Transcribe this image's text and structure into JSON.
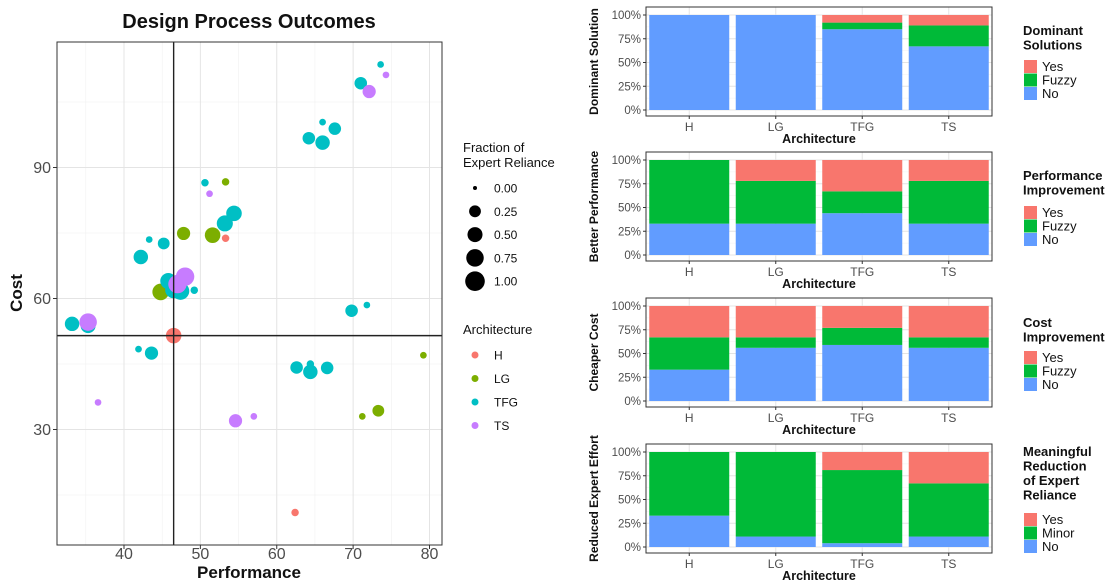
{
  "colors": {
    "H": "#F8766D",
    "LG": "#7CAE00",
    "TFG": "#00BFC4",
    "TS": "#C77CFF",
    "Yes": "#F8766D",
    "Fuzzy": "#00BA38",
    "Minor": "#00BA38",
    "No": "#619CFF"
  },
  "chart_data": [
    {
      "type": "scatter",
      "title": "Design Process Outcomes",
      "xlabel": "Performance",
      "ylabel": "Cost",
      "xlim": [
        32,
        81
      ],
      "ylim": [
        3,
        120
      ],
      "xticks": [
        40,
        50,
        60,
        70,
        80
      ],
      "yticks": [
        30,
        60,
        90
      ],
      "grid": true,
      "reference_lines": {
        "x": 46.5,
        "y": 51.5
      },
      "size_legend": {
        "title": "Fraction of Expert Reliance",
        "values": [
          "0.00",
          "0.25",
          "0.50",
          "0.75",
          "1.00"
        ]
      },
      "color_legend": {
        "title": "Architecture",
        "items": [
          "H",
          "LG",
          "TFG",
          "TS"
        ]
      },
      "series": [
        {
          "name": "H",
          "points": [
            {
              "x": 46.5,
              "y": 51.5,
              "s": 0.55
            },
            {
              "x": 53.3,
              "y": 73.8,
              "s": 0.05
            },
            {
              "x": 62.4,
              "y": 11.0,
              "s": 0.05
            }
          ]
        },
        {
          "name": "LG",
          "points": [
            {
              "x": 44.8,
              "y": 61.5,
              "s": 0.65
            },
            {
              "x": 51.6,
              "y": 74.5,
              "s": 0.55
            },
            {
              "x": 47.8,
              "y": 74.9,
              "s": 0.35
            },
            {
              "x": 53.3,
              "y": 86.7,
              "s": 0.05
            },
            {
              "x": 73.3,
              "y": 34.3,
              "s": 0.25
            },
            {
              "x": 71.2,
              "y": 33.0,
              "s": 0.03
            },
            {
              "x": 79.2,
              "y": 47.0,
              "s": 0.03
            }
          ]
        },
        {
          "name": "TFG",
          "points": [
            {
              "x": 33.2,
              "y": 54.2,
              "s": 0.45
            },
            {
              "x": 35.3,
              "y": 53.8,
              "s": 0.5
            },
            {
              "x": 42.2,
              "y": 69.5,
              "s": 0.45
            },
            {
              "x": 43.3,
              "y": 73.5,
              "s": 0.03
            },
            {
              "x": 45.2,
              "y": 72.6,
              "s": 0.25
            },
            {
              "x": 45.8,
              "y": 64.0,
              "s": 0.6
            },
            {
              "x": 46.5,
              "y": 62.0,
              "s": 0.7
            },
            {
              "x": 47.4,
              "y": 61.7,
              "s": 0.75
            },
            {
              "x": 49.2,
              "y": 61.9,
              "s": 0.05
            },
            {
              "x": 50.6,
              "y": 86.5,
              "s": 0.05
            },
            {
              "x": 53.2,
              "y": 77.2,
              "s": 0.6
            },
            {
              "x": 54.4,
              "y": 79.5,
              "s": 0.55
            },
            {
              "x": 41.9,
              "y": 48.4,
              "s": 0.03
            },
            {
              "x": 43.6,
              "y": 47.5,
              "s": 0.35
            },
            {
              "x": 62.6,
              "y": 44.2,
              "s": 0.3
            },
            {
              "x": 64.4,
              "y": 43.2,
              "s": 0.45
            },
            {
              "x": 64.4,
              "y": 45.0,
              "s": 0.05
            },
            {
              "x": 66.6,
              "y": 44.1,
              "s": 0.3
            },
            {
              "x": 64.2,
              "y": 96.7,
              "s": 0.3
            },
            {
              "x": 66.0,
              "y": 95.7,
              "s": 0.45
            },
            {
              "x": 66.0,
              "y": 100.4,
              "s": 0.03
            },
            {
              "x": 67.6,
              "y": 98.9,
              "s": 0.3
            },
            {
              "x": 69.8,
              "y": 57.2,
              "s": 0.3
            },
            {
              "x": 71.8,
              "y": 58.5,
              "s": 0.03
            },
            {
              "x": 71.0,
              "y": 109.3,
              "s": 0.3
            },
            {
              "x": 73.6,
              "y": 113.6,
              "s": 0.03
            }
          ]
        },
        {
          "name": "TS",
          "points": [
            {
              "x": 35.3,
              "y": 54.6,
              "s": 0.75
            },
            {
              "x": 48.0,
              "y": 65.0,
              "s": 0.85
            },
            {
              "x": 47.0,
              "y": 63.3,
              "s": 0.85
            },
            {
              "x": 51.2,
              "y": 84.0,
              "s": 0.03
            },
            {
              "x": 54.6,
              "y": 32.0,
              "s": 0.35
            },
            {
              "x": 57.0,
              "y": 33.0,
              "s": 0.03
            },
            {
              "x": 36.6,
              "y": 36.2,
              "s": 0.03
            },
            {
              "x": 72.1,
              "y": 107.4,
              "s": 0.35
            },
            {
              "x": 74.3,
              "y": 111.2,
              "s": 0.03
            }
          ]
        }
      ]
    },
    {
      "type": "bar",
      "stacked": true,
      "ylabel": "Dominant Solution",
      "xlabel": "Architecture",
      "categories": [
        "H",
        "LG",
        "TFG",
        "TS"
      ],
      "yticks": [
        "0%",
        "25%",
        "50%",
        "75%",
        "100%"
      ],
      "legend": {
        "title": "Dominant Solutions",
        "items": [
          "Yes",
          "Fuzzy",
          "No"
        ]
      },
      "series": [
        {
          "name": "No",
          "values": [
            100,
            100,
            85,
            67
          ]
        },
        {
          "name": "Fuzzy",
          "values": [
            0,
            0,
            7,
            22
          ]
        },
        {
          "name": "Yes",
          "values": [
            0,
            0,
            8,
            11
          ]
        }
      ]
    },
    {
      "type": "bar",
      "stacked": true,
      "ylabel": "Better Performance",
      "xlabel": "Architecture",
      "categories": [
        "H",
        "LG",
        "TFG",
        "TS"
      ],
      "yticks": [
        "0%",
        "25%",
        "50%",
        "75%",
        "100%"
      ],
      "legend": {
        "title": "Performance Improvement",
        "items": [
          "Yes",
          "Fuzzy",
          "No"
        ]
      },
      "series": [
        {
          "name": "No",
          "values": [
            33,
            33,
            44,
            33
          ]
        },
        {
          "name": "Fuzzy",
          "values": [
            67,
            45,
            23,
            45
          ]
        },
        {
          "name": "Yes",
          "values": [
            0,
            22,
            33,
            22
          ]
        }
      ]
    },
    {
      "type": "bar",
      "stacked": true,
      "ylabel": "Cheaper Cost",
      "xlabel": "Architecture",
      "categories": [
        "H",
        "LG",
        "TFG",
        "TS"
      ],
      "yticks": [
        "0%",
        "25%",
        "50%",
        "75%",
        "100%"
      ],
      "legend": {
        "title": "Cost Improvement",
        "items": [
          "Yes",
          "Fuzzy",
          "No"
        ]
      },
      "series": [
        {
          "name": "No",
          "values": [
            33,
            56,
            59,
            56
          ]
        },
        {
          "name": "Fuzzy",
          "values": [
            34,
            11,
            18,
            11
          ]
        },
        {
          "name": "Yes",
          "values": [
            33,
            33,
            23,
            33
          ]
        }
      ]
    },
    {
      "type": "bar",
      "stacked": true,
      "ylabel": "Reduced Expert Effort",
      "xlabel": "Architecture",
      "categories": [
        "H",
        "LG",
        "TFG",
        "TS"
      ],
      "yticks": [
        "0%",
        "25%",
        "50%",
        "75%",
        "100%"
      ],
      "legend": {
        "title": "Meaningful Reduction of Expert Reliance",
        "items": [
          "Yes",
          "Minor",
          "No"
        ]
      },
      "series": [
        {
          "name": "No",
          "values": [
            33,
            11,
            4,
            11
          ]
        },
        {
          "name": "Minor",
          "values": [
            67,
            89,
            77,
            56
          ]
        },
        {
          "name": "Yes",
          "values": [
            0,
            0,
            19,
            33
          ]
        }
      ]
    }
  ]
}
